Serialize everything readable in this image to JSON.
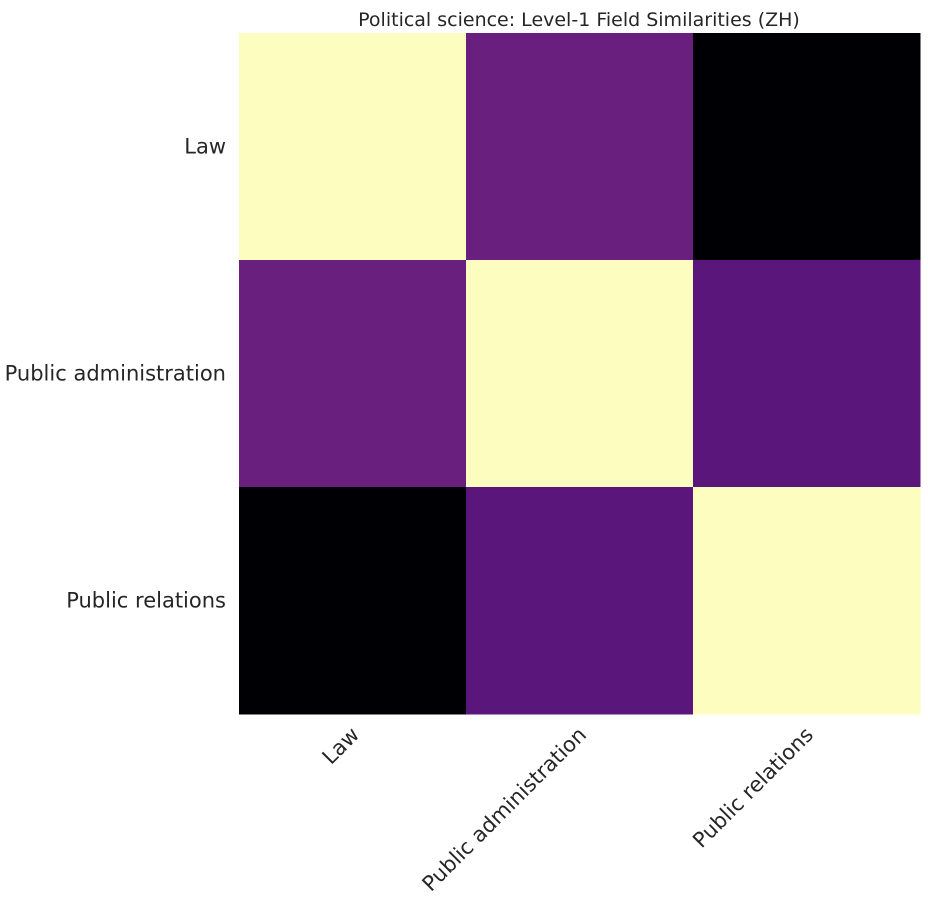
{
  "chart_data": {
    "type": "heatmap",
    "title": "Political science: Level-1 Field Similarities (ZH)",
    "rows": [
      "Law",
      "Public administration",
      "Public relations"
    ],
    "columns": [
      "Law",
      "Public administration",
      "Public relations"
    ],
    "colormap": "magma",
    "values": [
      [
        1.0,
        0.35,
        0.0
      ],
      [
        0.35,
        1.0,
        0.31
      ],
      [
        0.0,
        0.31,
        1.0
      ]
    ],
    "colors": [
      [
        "#fcfdbf",
        "#681f7e",
        "#000004"
      ],
      [
        "#681f7e",
        "#fcfdbf",
        "#5b167b"
      ],
      [
        "#000004",
        "#5b167b",
        "#fcfdbf"
      ]
    ],
    "colorbar": false,
    "grid": false
  }
}
